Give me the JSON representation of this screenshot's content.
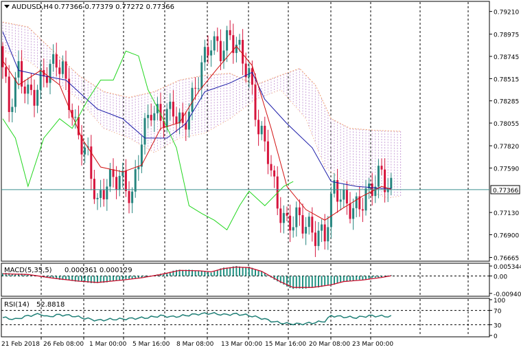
{
  "header": {
    "symbol": "AUDUSD,H4",
    "ohlc": "0.77366 0.77379 0.77272 0.77366"
  },
  "colors": {
    "bull": "#26857f",
    "bear": "#d6143c",
    "tenkan": "#d10f0f",
    "kijun": "#1b1ba8",
    "chikou": "#22d61e",
    "senkou_b": "#f0a070",
    "cloud": "#c9a0d8",
    "macd_bar": "#1f8f80",
    "macd_signal": "#c8102e",
    "rsi": "#1f7f76",
    "grid": "#000000",
    "bid_line": "#3a8f8f"
  },
  "chart_data": [
    {
      "type": "candlestick",
      "title": "AUDUSD,H4",
      "subtitle": "0.77366 0.77379 0.77272 0.77366",
      "y_axis_labels": [
        "0.79210",
        "0.78975",
        "0.78745",
        "0.78515",
        "0.78285",
        "0.78055",
        "0.77820",
        "0.77590",
        "0.77366",
        "0.77130",
        "0.76900",
        "0.76665"
      ],
      "ylim": [
        0.7664,
        0.793
      ],
      "current_price": "0.77366",
      "x_tick_labels": [
        "21 Feb 2018",
        "26 Feb 08:00",
        "1 Mar 00:00",
        "5 Mar 16:00",
        "8 Mar 08:00",
        "13 Mar 00:00",
        "15 Mar 16:00",
        "20 Mar 08:00",
        "23 Mar 00:00"
      ],
      "grid": "vertical dashed",
      "indicators": [
        "Ichimoku Kinko Hyo (tenkan, kijun, chikou, cloud)"
      ],
      "close_path": [
        [
          0,
          0.7885
        ],
        [
          3,
          0.782
        ],
        [
          6,
          0.786
        ],
        [
          9,
          0.7835
        ],
        [
          11,
          0.7835
        ],
        [
          14,
          0.7855
        ],
        [
          18,
          0.787
        ],
        [
          20,
          0.786
        ],
        [
          24,
          0.78
        ],
        [
          28,
          0.777
        ],
        [
          31,
          0.772
        ],
        [
          34,
          0.7745
        ],
        [
          38,
          0.775
        ],
        [
          42,
          0.7728
        ],
        [
          45,
          0.779
        ],
        [
          48,
          0.782
        ],
        [
          51,
          0.781
        ],
        [
          55,
          0.782
        ],
        [
          58,
          0.78
        ],
        [
          61,
          0.783
        ],
        [
          64,
          0.7865
        ],
        [
          67,
          0.789
        ],
        [
          70,
          0.788
        ],
        [
          73,
          0.7895
        ],
        [
          76,
          0.788
        ],
        [
          79,
          0.7855
        ],
        [
          82,
          0.78
        ],
        [
          85,
          0.7775
        ],
        [
          88,
          0.772
        ],
        [
          91,
          0.77
        ],
        [
          94,
          0.7708
        ],
        [
          97,
          0.77
        ],
        [
          100,
          0.769
        ],
        [
          103,
          0.769
        ],
        [
          106,
          0.774
        ],
        [
          109,
          0.7725
        ],
        [
          112,
          0.7715
        ],
        [
          115,
          0.7725
        ],
        [
          118,
          0.774
        ],
        [
          121,
          0.7755
        ],
        [
          123,
          0.7737
        ]
      ],
      "kijun": [
        [
          0,
          0.79
        ],
        [
          5,
          0.786
        ],
        [
          12,
          0.7855
        ],
        [
          20,
          0.785
        ],
        [
          30,
          0.782
        ],
        [
          38,
          0.781
        ],
        [
          45,
          0.779
        ],
        [
          52,
          0.779
        ],
        [
          58,
          0.7805
        ],
        [
          64,
          0.7838
        ],
        [
          72,
          0.7847
        ],
        [
          79,
          0.7858
        ],
        [
          83,
          0.783
        ],
        [
          90,
          0.7805
        ],
        [
          98,
          0.778
        ],
        [
          104,
          0.7745
        ],
        [
          112,
          0.774
        ],
        [
          120,
          0.7738
        ],
        [
          123,
          0.7738
        ]
      ],
      "tenkan": [
        [
          0,
          0.787
        ],
        [
          5,
          0.7845
        ],
        [
          12,
          0.786
        ],
        [
          18,
          0.7845
        ],
        [
          25,
          0.779
        ],
        [
          31,
          0.776
        ],
        [
          38,
          0.7755
        ],
        [
          44,
          0.7762
        ],
        [
          50,
          0.78
        ],
        [
          56,
          0.7806
        ],
        [
          62,
          0.7838
        ],
        [
          68,
          0.7862
        ],
        [
          74,
          0.7885
        ],
        [
          79,
          0.7865
        ],
        [
          85,
          0.78
        ],
        [
          90,
          0.774
        ],
        [
          96,
          0.7716
        ],
        [
          102,
          0.7705
        ],
        [
          108,
          0.7718
        ],
        [
          114,
          0.773
        ],
        [
          120,
          0.774
        ],
        [
          123,
          0.7737
        ]
      ],
      "chikou": [
        [
          0,
          0.781
        ],
        [
          4,
          0.779
        ],
        [
          8,
          0.774
        ],
        [
          13,
          0.779
        ],
        [
          18,
          0.781
        ],
        [
          22,
          0.78
        ],
        [
          27,
          0.783
        ],
        [
          31,
          0.785
        ],
        [
          35,
          0.785
        ],
        [
          39,
          0.788
        ],
        [
          43,
          0.7875
        ],
        [
          46,
          0.784
        ],
        [
          50,
          0.7815
        ],
        [
          55,
          0.778
        ],
        [
          59,
          0.772
        ],
        [
          63,
          0.7712
        ],
        [
          67,
          0.7705
        ],
        [
          71,
          0.7695
        ],
        [
          75,
          0.772
        ],
        [
          78,
          0.7735
        ],
        [
          83,
          0.772
        ],
        [
          86,
          0.773
        ],
        [
          89,
          0.774
        ],
        [
          92,
          0.7745
        ]
      ],
      "senkou_b": [
        [
          0,
          0.791
        ],
        [
          8,
          0.7905
        ],
        [
          16,
          0.788
        ],
        [
          24,
          0.7855
        ],
        [
          32,
          0.7838
        ],
        [
          40,
          0.7832
        ],
        [
          48,
          0.7838
        ],
        [
          56,
          0.785
        ],
        [
          64,
          0.7855
        ],
        [
          72,
          0.7857
        ],
        [
          80,
          0.7845
        ],
        [
          88,
          0.7855
        ],
        [
          94,
          0.7862
        ],
        [
          99,
          0.7845
        ],
        [
          104,
          0.781
        ],
        [
          110,
          0.78
        ],
        [
          118,
          0.7798
        ],
        [
          126,
          0.7797
        ]
      ],
      "senkou_a": [
        [
          0,
          0.788
        ],
        [
          8,
          0.787
        ],
        [
          16,
          0.785
        ],
        [
          24,
          0.783
        ],
        [
          32,
          0.78
        ],
        [
          40,
          0.779
        ],
        [
          48,
          0.7775
        ],
        [
          56,
          0.779
        ],
        [
          64,
          0.7795
        ],
        [
          72,
          0.781
        ],
        [
          80,
          0.783
        ],
        [
          88,
          0.784
        ],
        [
          96,
          0.781
        ],
        [
          102,
          0.776
        ],
        [
          108,
          0.7745
        ],
        [
          116,
          0.7735
        ],
        [
          122,
          0.7728
        ],
        [
          126,
          0.773
        ]
      ]
    },
    {
      "type": "histogram",
      "title": "MACD(5,35,5)",
      "subtitle": "0.000361 0.000129",
      "y_axis_labels": [
        "0.005344",
        "0.00",
        "-0.009404"
      ],
      "ylim": [
        -0.0102,
        0.0061
      ],
      "values": [
        [
          0,
          0.0015
        ],
        [
          8,
          0.001
        ],
        [
          16,
          -0.0015
        ],
        [
          24,
          -0.003
        ],
        [
          30,
          -0.004
        ],
        [
          38,
          -0.002
        ],
        [
          44,
          -0.001
        ],
        [
          50,
          0.001
        ],
        [
          56,
          0.0035
        ],
        [
          62,
          0.003
        ],
        [
          66,
          0.002
        ],
        [
          70,
          0.0045
        ],
        [
          74,
          0.0052
        ],
        [
          78,
          0.0048
        ],
        [
          82,
          0.0025
        ],
        [
          88,
          -0.004
        ],
        [
          92,
          -0.007
        ],
        [
          98,
          -0.0065
        ],
        [
          104,
          -0.005
        ],
        [
          108,
          -0.003
        ],
        [
          114,
          -0.002
        ],
        [
          120,
          -0.0005
        ],
        [
          123,
          0.0004
        ]
      ],
      "signal": [
        [
          0,
          0.0012
        ],
        [
          8,
          0.0008
        ],
        [
          16,
          -0.0012
        ],
        [
          24,
          -0.0028
        ],
        [
          30,
          -0.0035
        ],
        [
          38,
          -0.0022
        ],
        [
          44,
          -0.001
        ],
        [
          50,
          0.0008
        ],
        [
          56,
          0.003
        ],
        [
          62,
          0.0028
        ],
        [
          66,
          0.0022
        ],
        [
          70,
          0.004
        ],
        [
          74,
          0.0048
        ],
        [
          78,
          0.0045
        ],
        [
          82,
          0.0025
        ],
        [
          88,
          -0.0032
        ],
        [
          92,
          -0.0062
        ],
        [
          98,
          -0.0062
        ],
        [
          104,
          -0.0048
        ],
        [
          108,
          -0.003
        ],
        [
          114,
          -0.0022
        ],
        [
          120,
          -0.0008
        ],
        [
          123,
          0.0001
        ]
      ]
    },
    {
      "type": "line",
      "title": "RSI(14)",
      "subtitle": "52.8818",
      "y_axis_labels": [
        "100",
        "70",
        "30",
        "0"
      ],
      "levels": [
        70,
        30
      ],
      "ylim": [
        0,
        100
      ],
      "values": [
        [
          0,
          50
        ],
        [
          4,
          45
        ],
        [
          8,
          55
        ],
        [
          12,
          60
        ],
        [
          14,
          52
        ],
        [
          18,
          58
        ],
        [
          22,
          55
        ],
        [
          26,
          48
        ],
        [
          30,
          42
        ],
        [
          34,
          45
        ],
        [
          38,
          46
        ],
        [
          42,
          48
        ],
        [
          46,
          50
        ],
        [
          50,
          55
        ],
        [
          54,
          52
        ],
        [
          58,
          56
        ],
        [
          62,
          60
        ],
        [
          66,
          62
        ],
        [
          70,
          58
        ],
        [
          74,
          60
        ],
        [
          78,
          56
        ],
        [
          82,
          48
        ],
        [
          86,
          38
        ],
        [
          90,
          33
        ],
        [
          94,
          32
        ],
        [
          98,
          35
        ],
        [
          102,
          40
        ],
        [
          104,
          55
        ],
        [
          108,
          52
        ],
        [
          112,
          50
        ],
        [
          116,
          55
        ],
        [
          120,
          54
        ],
        [
          123,
          53
        ]
      ]
    }
  ]
}
